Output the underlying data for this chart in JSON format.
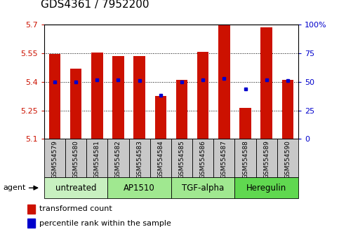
{
  "title": "GDS4361 / 7952200",
  "samples": [
    "GSM554579",
    "GSM554580",
    "GSM554581",
    "GSM554582",
    "GSM554583",
    "GSM554584",
    "GSM554585",
    "GSM554586",
    "GSM554587",
    "GSM554588",
    "GSM554589",
    "GSM554590"
  ],
  "red_values": [
    5.548,
    5.468,
    5.553,
    5.537,
    5.535,
    5.325,
    5.412,
    5.558,
    5.698,
    5.263,
    5.687,
    5.412
  ],
  "blue_values": [
    50,
    50,
    52,
    52,
    51,
    38,
    50,
    52,
    53,
    44,
    52,
    51
  ],
  "y_min": 5.1,
  "y_max": 5.7,
  "y_ticks": [
    5.1,
    5.25,
    5.4,
    5.55,
    5.7
  ],
  "y_tick_labels": [
    "5.1",
    "5.25",
    "5.4",
    "5.55",
    "5.7"
  ],
  "right_y_ticks": [
    0,
    25,
    50,
    75,
    100
  ],
  "right_y_labels": [
    "0",
    "25",
    "50",
    "75",
    "100%"
  ],
  "groups": [
    {
      "label": "untreated",
      "start": 0,
      "end": 3,
      "color": "#c8f0c0"
    },
    {
      "label": "AP1510",
      "start": 3,
      "end": 6,
      "color": "#a0e890"
    },
    {
      "label": "TGF-alpha",
      "start": 6,
      "end": 9,
      "color": "#a0e890"
    },
    {
      "label": "Heregulin",
      "start": 9,
      "end": 12,
      "color": "#60d850"
    }
  ],
  "bar_color": "#cc1100",
  "dot_color": "#0000cc",
  "grid_color": "#555555",
  "tick_area_color": "#c8c8c8",
  "title_fontsize": 11,
  "label_fontsize": 6.5,
  "group_fontsize": 8.5,
  "legend_fontsize": 8
}
